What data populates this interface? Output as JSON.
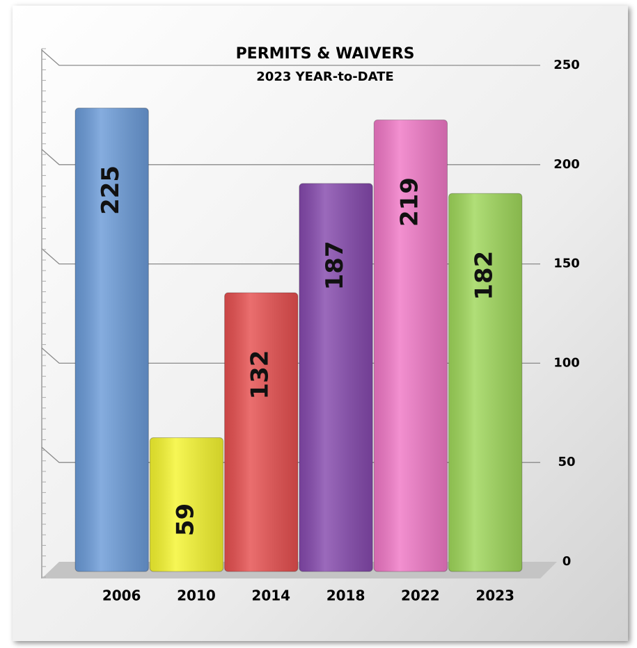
{
  "chart_data": {
    "type": "bar",
    "title": "PERMITS & WAIVERS",
    "subtitle": "2023 YEAR-to-DATE",
    "categories": [
      "2006",
      "2010",
      "2014",
      "2018",
      "2022",
      "2023"
    ],
    "values": [
      225,
      59,
      132,
      187,
      219,
      182
    ],
    "colors": [
      "#6b9bd8",
      "#f5f530",
      "#e64f4f",
      "#8549ad",
      "#f078c6",
      "#9fd75a"
    ],
    "ylim": [
      0,
      250
    ],
    "yticks": [
      0,
      50,
      100,
      150,
      200,
      250
    ],
    "y_axis_side": "right",
    "grid": true,
    "data_labels": true
  }
}
